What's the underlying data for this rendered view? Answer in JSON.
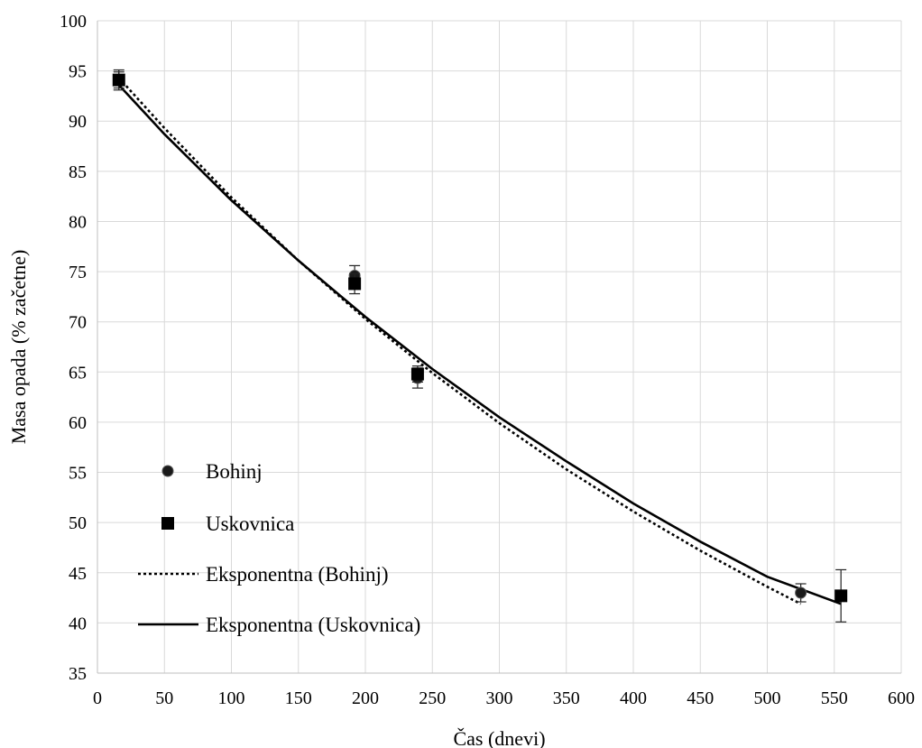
{
  "chart_data": {
    "type": "scatter",
    "xlabel": "Čas (dnevi)",
    "ylabel": "Masa opada (% začetne)",
    "xlim": [
      0,
      600
    ],
    "ylim": [
      35,
      100
    ],
    "x_ticks": [
      0,
      50,
      100,
      150,
      200,
      250,
      300,
      350,
      400,
      450,
      500,
      550,
      600
    ],
    "y_ticks": [
      35,
      40,
      45,
      50,
      55,
      60,
      65,
      70,
      75,
      80,
      85,
      90,
      95,
      100
    ],
    "grid": true,
    "legend_position": "left",
    "series": [
      {
        "name": "Bohinj",
        "kind": "points",
        "marker": "circle",
        "color": "#1a1a1a",
        "points": [
          {
            "x": 16,
            "y": 94.1,
            "err": 1.0
          },
          {
            "x": 192,
            "y": 74.6,
            "err": 1.0
          },
          {
            "x": 239,
            "y": 64.4,
            "err": 1.0
          },
          {
            "x": 525,
            "y": 43.0,
            "err": 0.9
          }
        ]
      },
      {
        "name": "Uskovnica",
        "kind": "points",
        "marker": "square",
        "color": "#000000",
        "points": [
          {
            "x": 16,
            "y": 94.1,
            "err": 0.8
          },
          {
            "x": 192,
            "y": 73.8,
            "err": 1.0
          },
          {
            "x": 239,
            "y": 64.8,
            "err": 0.8
          },
          {
            "x": 555,
            "y": 42.7,
            "err": 2.6
          }
        ]
      },
      {
        "name": "Eksponentna (Bohinj)",
        "kind": "line",
        "style": "dotted",
        "color": "#000000",
        "points": [
          {
            "x": 16,
            "y": 94.3
          },
          {
            "x": 50,
            "y": 89.3
          },
          {
            "x": 100,
            "y": 82.4
          },
          {
            "x": 150,
            "y": 76.1
          },
          {
            "x": 200,
            "y": 70.3
          },
          {
            "x": 250,
            "y": 64.9
          },
          {
            "x": 300,
            "y": 59.9
          },
          {
            "x": 350,
            "y": 55.3
          },
          {
            "x": 400,
            "y": 51.1
          },
          {
            "x": 450,
            "y": 47.2
          },
          {
            "x": 500,
            "y": 43.6
          },
          {
            "x": 525,
            "y": 41.9
          }
        ]
      },
      {
        "name": "Eksponentna (Uskovnica)",
        "kind": "line",
        "style": "solid",
        "color": "#000000",
        "points": [
          {
            "x": 16,
            "y": 93.6
          },
          {
            "x": 50,
            "y": 88.7
          },
          {
            "x": 100,
            "y": 82.1
          },
          {
            "x": 150,
            "y": 76.1
          },
          {
            "x": 200,
            "y": 70.5
          },
          {
            "x": 250,
            "y": 65.3
          },
          {
            "x": 300,
            "y": 60.5
          },
          {
            "x": 350,
            "y": 56.1
          },
          {
            "x": 400,
            "y": 51.9
          },
          {
            "x": 450,
            "y": 48.1
          },
          {
            "x": 500,
            "y": 44.6
          },
          {
            "x": 555,
            "y": 41.9
          }
        ]
      }
    ]
  }
}
